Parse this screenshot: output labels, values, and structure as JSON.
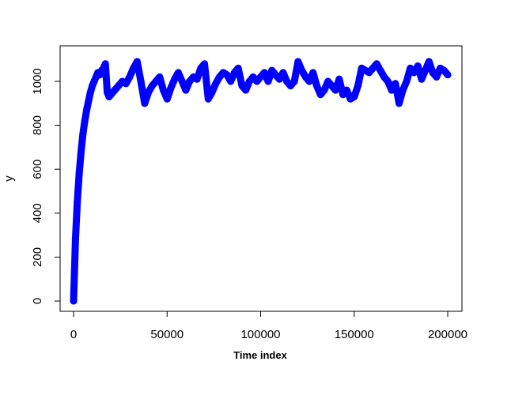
{
  "chart_data": {
    "type": "line",
    "title": "",
    "xlabel": "Time index",
    "ylabel": "y",
    "xlim": [
      0,
      200000
    ],
    "ylim": [
      0,
      1100
    ],
    "x_ticks": [
      0,
      50000,
      100000,
      150000,
      200000
    ],
    "x_tick_labels": [
      "0",
      "50000",
      "100000",
      "150000",
      "200000"
    ],
    "y_ticks": [
      0,
      200,
      400,
      600,
      800,
      1000
    ],
    "y_tick_labels": [
      "0",
      "200",
      "400",
      "600",
      "800",
      "1000"
    ],
    "grid": false,
    "legend": "none",
    "series": [
      {
        "color": "#0000ff",
        "x": [
          0,
          1000,
          2000,
          3000,
          4000,
          5000,
          6000,
          7000,
          8000,
          9000,
          10000,
          11000,
          12000,
          13000,
          14000,
          15000,
          16000,
          17000,
          18000,
          19000,
          20000,
          22000,
          24000,
          26000,
          28000,
          30000,
          32000,
          34000,
          36000,
          38000,
          40000,
          42000,
          44000,
          46000,
          48000,
          50000,
          52000,
          54000,
          56000,
          58000,
          60000,
          62000,
          64000,
          66000,
          68000,
          70000,
          72000,
          74000,
          76000,
          78000,
          80000,
          82000,
          84000,
          86000,
          88000,
          90000,
          92000,
          94000,
          96000,
          98000,
          100000,
          102000,
          104000,
          106000,
          108000,
          110000,
          112000,
          114000,
          116000,
          118000,
          120000,
          122000,
          124000,
          126000,
          128000,
          130000,
          132000,
          134000,
          136000,
          138000,
          140000,
          142000,
          144000,
          146000,
          148000,
          150000,
          152000,
          154000,
          156000,
          158000,
          160000,
          162000,
          164000,
          166000,
          168000,
          170000,
          172000,
          174000,
          176000,
          178000,
          180000,
          182000,
          184000,
          186000,
          188000,
          190000,
          192000,
          194000,
          196000,
          198000,
          200000
        ],
        "y": [
          0,
          280,
          450,
          580,
          680,
          760,
          820,
          870,
          910,
          950,
          980,
          1000,
          1020,
          1040,
          1030,
          1050,
          1060,
          1080,
          950,
          930,
          940,
          960,
          980,
          1000,
          990,
          1020,
          1060,
          1090,
          1000,
          900,
          950,
          980,
          1000,
          1020,
          960,
          920,
          970,
          1010,
          1040,
          1000,
          960,
          1000,
          1020,
          1010,
          1060,
          1080,
          920,
          950,
          990,
          1020,
          1040,
          1030,
          1000,
          1040,
          1060,
          980,
          960,
          1000,
          1020,
          1000,
          1020,
          1040,
          1000,
          1050,
          1030,
          1010,
          1040,
          1000,
          980,
          1000,
          1090,
          1050,
          1020,
          1000,
          1040,
          980,
          940,
          960,
          1000,
          980,
          960,
          1010,
          940,
          960,
          920,
          930,
          980,
          1060,
          1050,
          1040,
          1060,
          1080,
          1050,
          1020,
          1000,
          960,
          990,
          900,
          960,
          1000,
          1060,
          1040,
          1070,
          1010,
          1050,
          1090,
          1040,
          1020,
          1060,
          1050,
          1030
        ]
      }
    ]
  }
}
